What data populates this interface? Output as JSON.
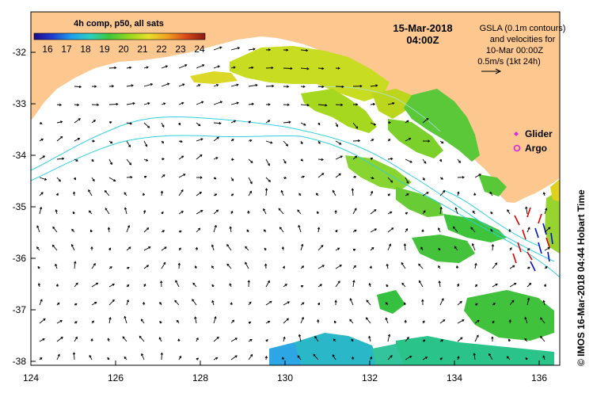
{
  "title": {
    "date": "15-Mar-2018",
    "time": "04:00Z"
  },
  "colorbar": {
    "title": "4h comp, p50, all sats",
    "ticks": [
      "16",
      "17",
      "18",
      "19",
      "20",
      "21",
      "22",
      "23",
      "24"
    ],
    "min": 15.5,
    "max": 24.5,
    "colors": [
      "#1c0a8c",
      "#1f3fd0",
      "#1fa0f0",
      "#2ad0c0",
      "#3ec83a",
      "#9ad81e",
      "#e8e02a",
      "#f0a020",
      "#d84818",
      "#8a1a10"
    ]
  },
  "info": {
    "line1": "GSLA (0.1m contours)",
    "line2": "and velocities for",
    "line3": "10-Mar 00:00Z",
    "line4": "0.5m/s (1kt 24h)"
  },
  "legend": {
    "glider": "Glider",
    "argo": "Argo",
    "glider_color": "#d030e0",
    "argo_color": "#e020e0"
  },
  "credit": "© IMOS 16-Mar-2018 04:44 Hobart Time",
  "axes": {
    "x_ticks": [
      "124",
      "126",
      "128",
      "130",
      "132",
      "134",
      "136"
    ],
    "y_ticks": [
      "-32",
      "-33",
      "-34",
      "-35",
      "-36",
      "-37",
      "-38"
    ],
    "lon_range": [
      124,
      136.5
    ],
    "lat_range": [
      -38.2,
      -31.3
    ]
  },
  "colors": {
    "land": "#fcc890",
    "contour": "#30d0e0",
    "arrow": "#000000",
    "radar_red": "#e00000",
    "radar_blue": "#0010d0"
  }
}
